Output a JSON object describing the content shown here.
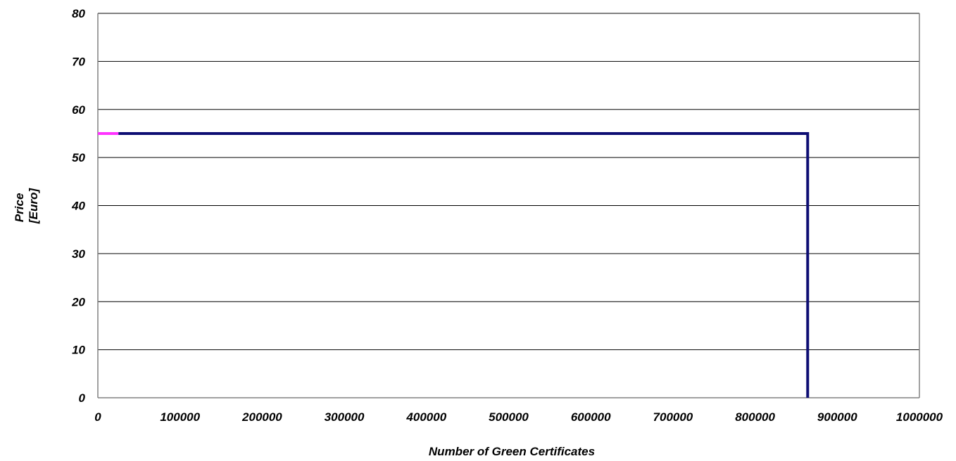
{
  "chart_data": {
    "type": "line",
    "title": "",
    "xlabel": "Number of Green Certificates",
    "ylabel_lines": [
      "Price",
      "[Euro]"
    ],
    "xlim": [
      0,
      1000000
    ],
    "ylim": [
      0,
      80
    ],
    "x_ticks": [
      0,
      100000,
      200000,
      300000,
      400000,
      500000,
      600000,
      700000,
      800000,
      900000,
      1000000
    ],
    "y_ticks": [
      0,
      10,
      20,
      30,
      40,
      50,
      60,
      70,
      80
    ],
    "grid": "horizontal",
    "legend": "none",
    "series": [
      {
        "color": "#0d0d73",
        "x": [
          25000,
          864000,
          864000
        ],
        "y": [
          55,
          55,
          0
        ]
      },
      {
        "color": "#ff33ff",
        "x": [
          0,
          25000
        ],
        "y": [
          55,
          55
        ]
      }
    ]
  }
}
